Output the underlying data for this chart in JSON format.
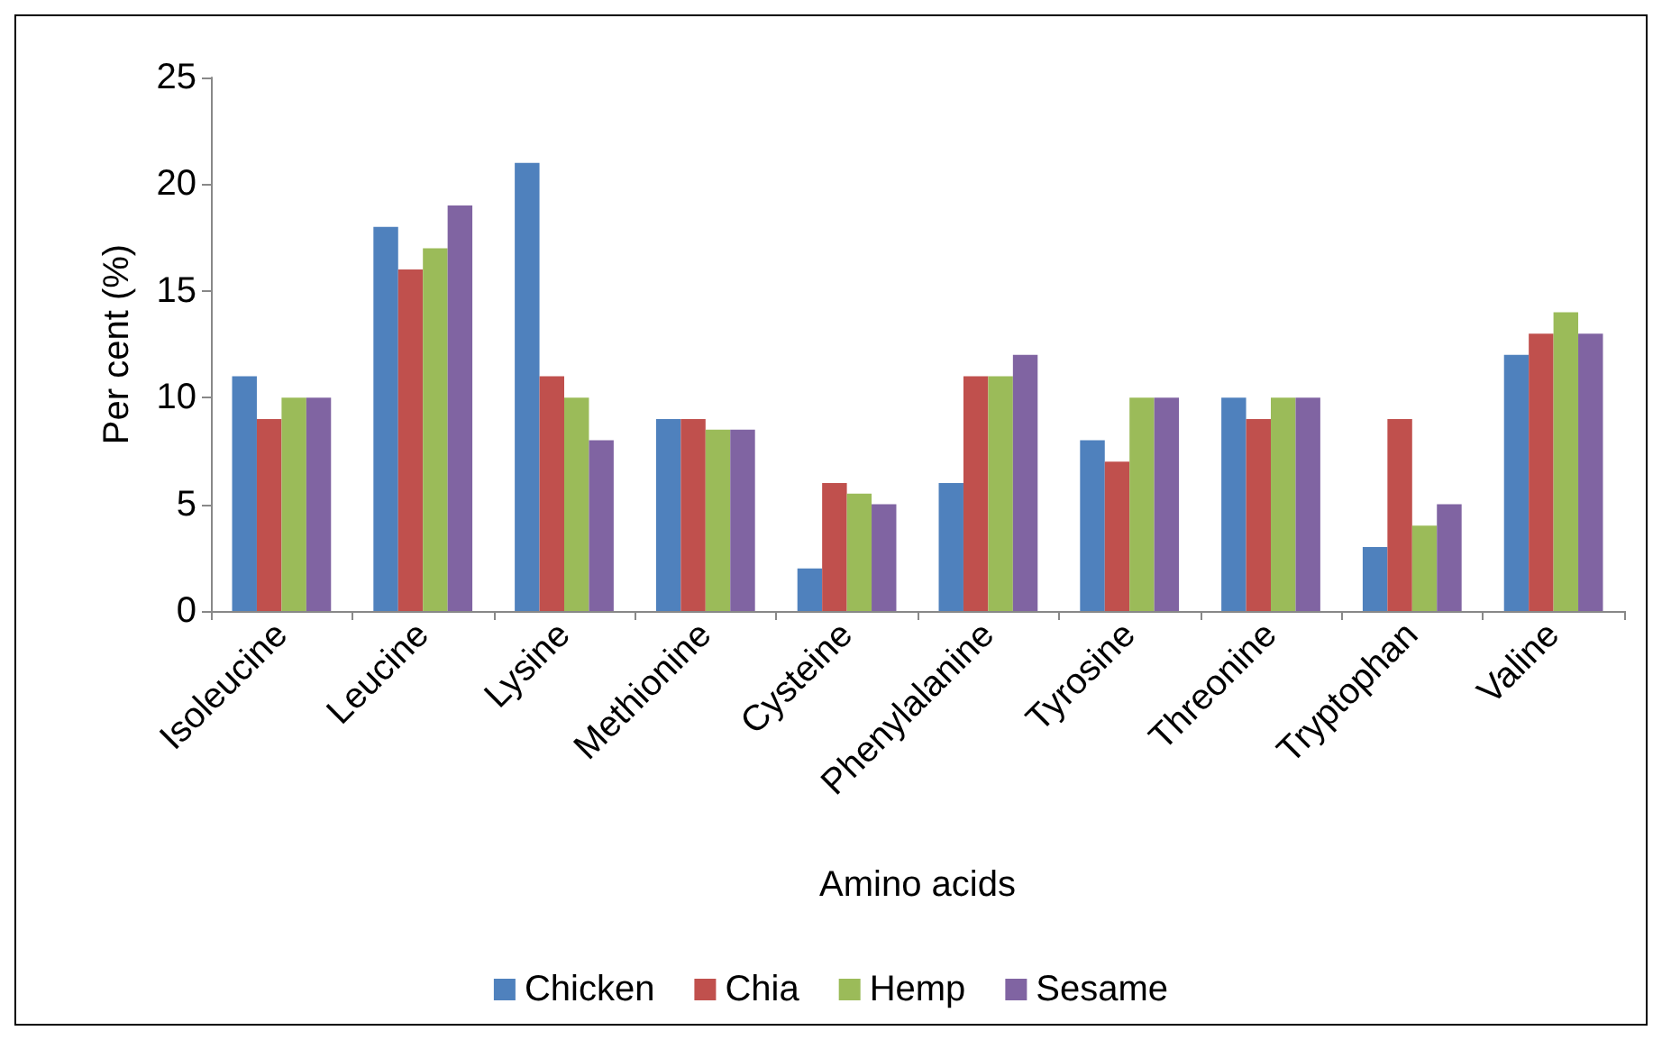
{
  "chart_data": {
    "type": "bar",
    "xlabel": "Amino acids",
    "ylabel": "Per cent (%)",
    "categories": [
      "Isoleucine",
      "Leucine",
      "Lysine",
      "Methionine",
      "Cysteine",
      "Phenylalanine",
      "Tyrosine",
      "Threonine",
      "Tryptophan",
      "Valine"
    ],
    "series": [
      {
        "name": "Chicken",
        "color": "#4f81bd",
        "values": [
          11,
          18,
          21,
          9,
          2,
          6,
          8,
          10,
          3,
          12
        ]
      },
      {
        "name": "Chia",
        "color": "#c0504d",
        "values": [
          9,
          16,
          11,
          9,
          6,
          11,
          7,
          9,
          9,
          13
        ]
      },
      {
        "name": "Hemp",
        "color": "#9bbb59",
        "values": [
          10,
          17,
          10,
          8.5,
          5.5,
          11,
          10,
          10,
          4,
          14
        ]
      },
      {
        "name": "Sesame",
        "color": "#8064a2",
        "values": [
          10,
          19,
          8,
          8.5,
          5,
          12,
          10,
          10,
          5,
          13
        ]
      }
    ],
    "ylim": [
      0,
      25
    ],
    "yticks": [
      0,
      5,
      10,
      15,
      20,
      25
    ],
    "grid": false,
    "legend": "bottom"
  }
}
